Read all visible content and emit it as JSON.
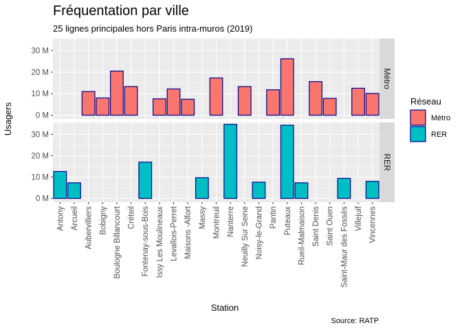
{
  "chart_data": {
    "type": "bar",
    "title": "Fréquentation par ville",
    "subtitle": "25 lignes principales hors Paris intra-muros (2019)",
    "xlabel": "Station",
    "ylabel": "Usagers",
    "caption": "Source: RATP",
    "ylim": [
      0,
      35000000
    ],
    "y_ticks": [
      0,
      10000000,
      20000000,
      30000000
    ],
    "y_tick_labels": [
      "0 M",
      "10 M",
      "20 M",
      "30 M"
    ],
    "grid": true,
    "legend": {
      "title": "Réseau",
      "position": "right"
    },
    "categories": [
      "Antony",
      "Arcueil",
      "Aubervilliers",
      "Bobigny",
      "Boulogne Billancourt",
      "Créteil",
      "Fontenay-sous-Bois",
      "Issy Les Moulineaux",
      "Levallois-Perret",
      "Maisons -Alfort",
      "Massy",
      "Montreuil",
      "Nanterre",
      "Neuilly Sur Seine",
      "Noisy-le-Grand",
      "Pantin",
      "Puteaux",
      "Rueil-Malmaison",
      "Saint Denis",
      "Saint Ouen",
      "Saint-Maur des Fossés",
      "Villejuif",
      "Vincennes"
    ],
    "series": [
      {
        "name": "Métro",
        "facet": "Métro",
        "fill": "#F8766D",
        "outline": "#00008B",
        "values": [
          null,
          null,
          11000000,
          8000000,
          20500000,
          13300000,
          null,
          7600000,
          12200000,
          7400000,
          null,
          17300000,
          null,
          13300000,
          null,
          11800000,
          26200000,
          null,
          15600000,
          7800000,
          null,
          12500000,
          10100000
        ]
      },
      {
        "name": "RER",
        "facet": "RER",
        "fill": "#00BFC4",
        "outline": "#00008B",
        "values": [
          12600000,
          7300000,
          null,
          null,
          null,
          null,
          17000000,
          null,
          null,
          null,
          9700000,
          null,
          34700000,
          null,
          7600000,
          null,
          34300000,
          7300000,
          null,
          null,
          9400000,
          null,
          8000000
        ]
      }
    ]
  }
}
